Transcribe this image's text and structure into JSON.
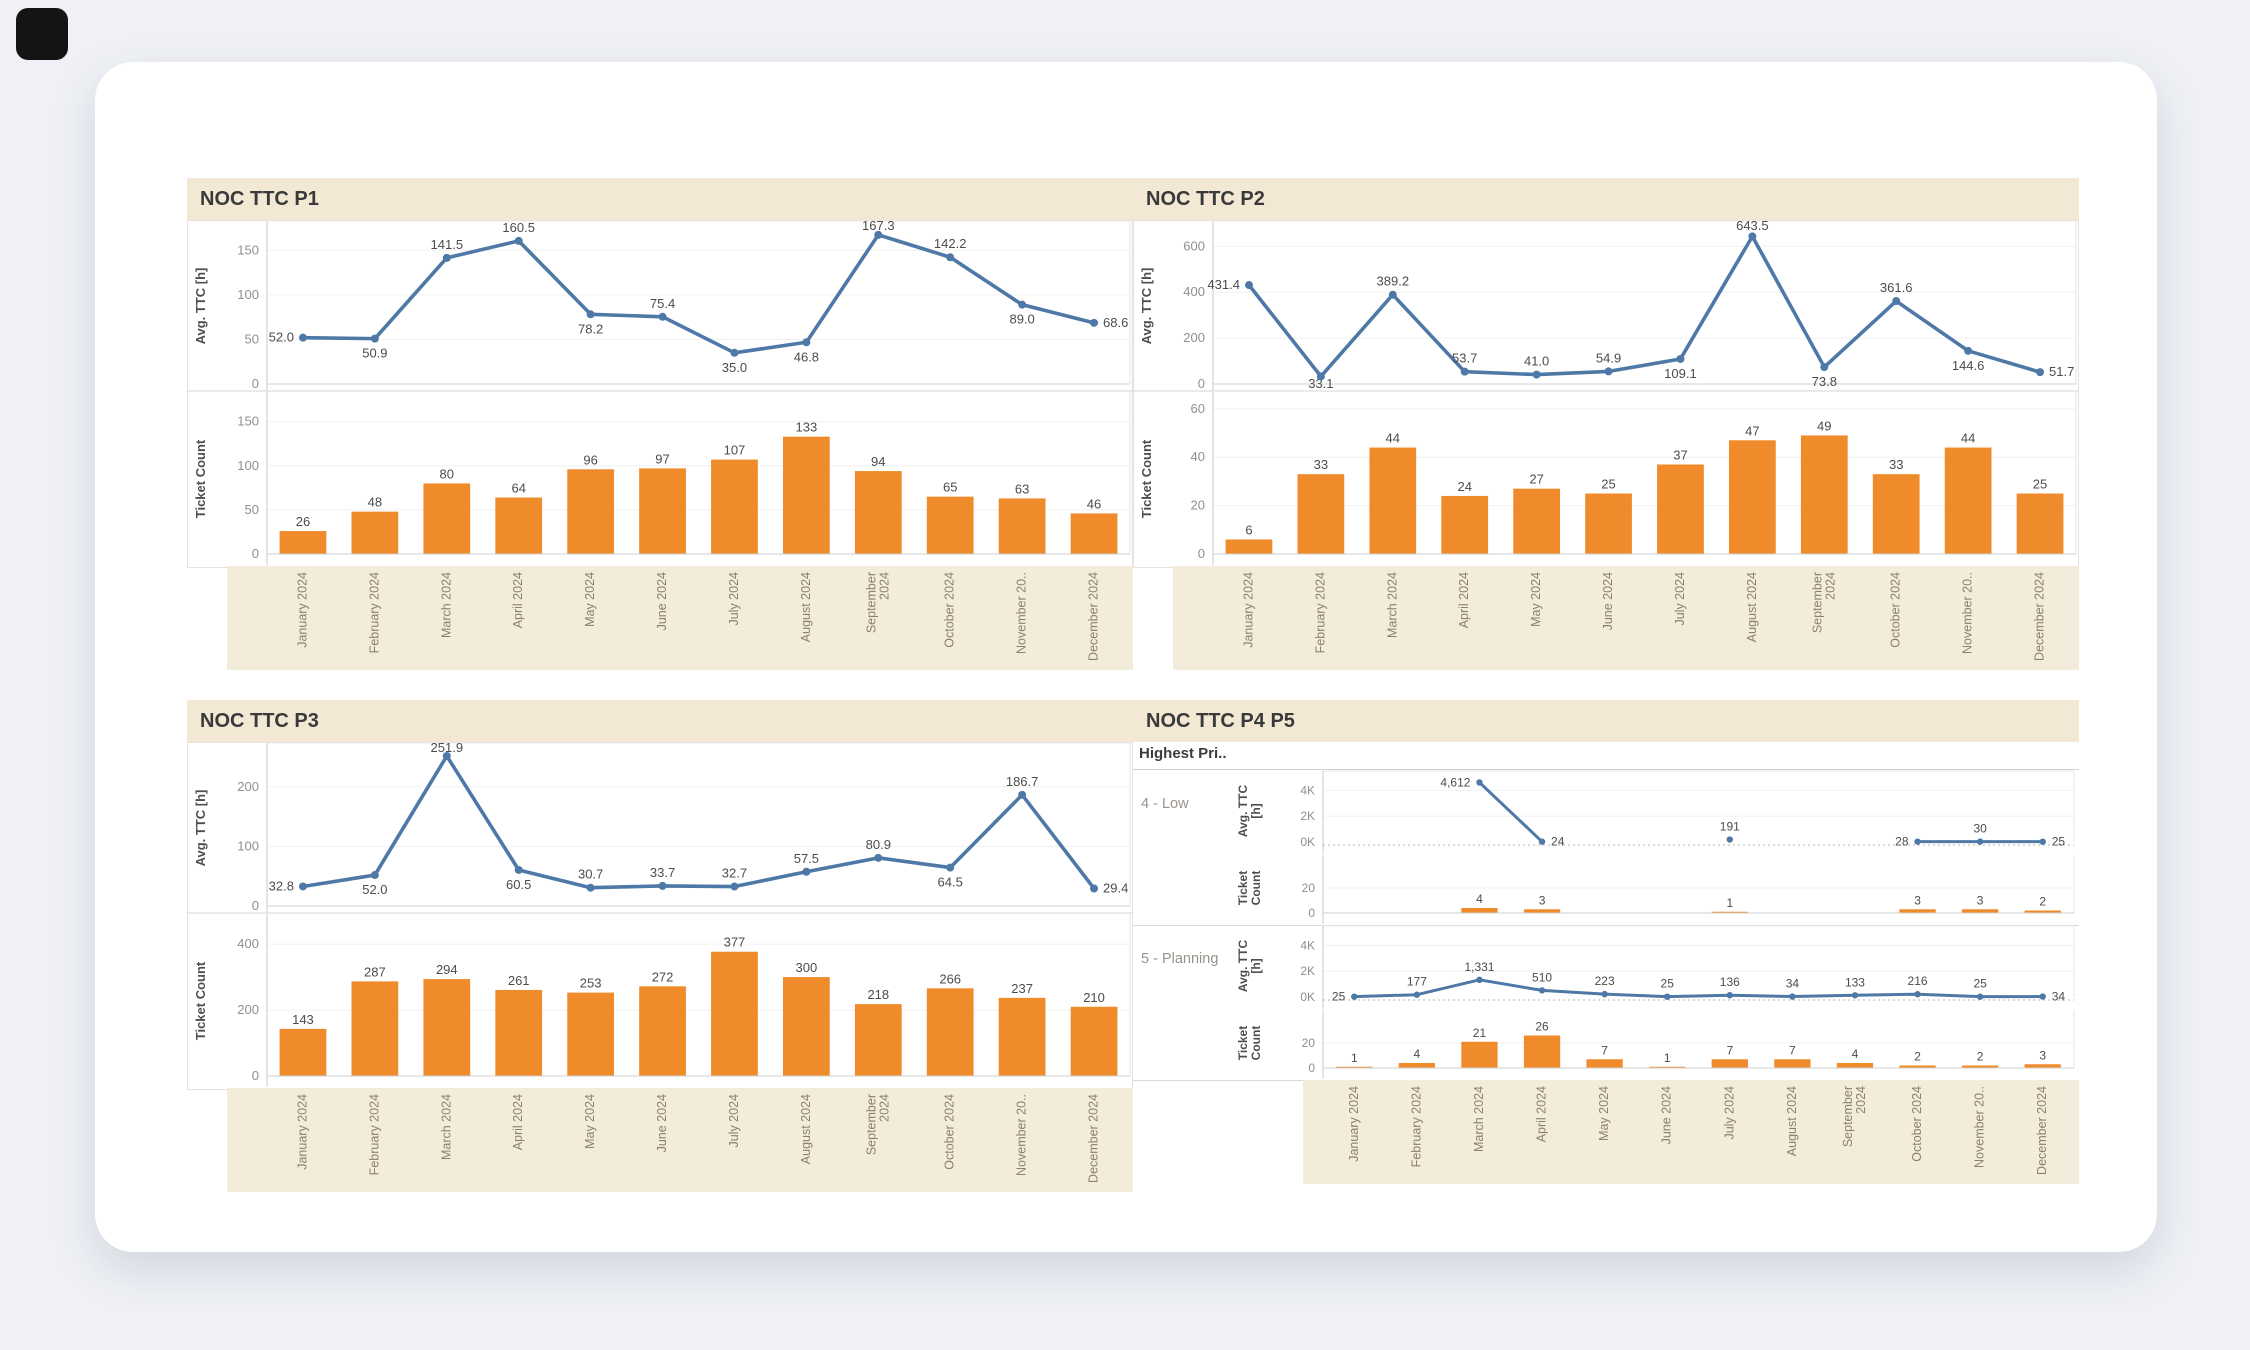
{
  "chart_data": {
    "type": "dashboard",
    "months": [
      "January 2024",
      "February 2024",
      "March 2024",
      "April 2024",
      "May 2024",
      "June 2024",
      "July 2024",
      "August 2024",
      "September\n2024",
      "October 2024",
      "November 20..",
      "December 2024"
    ],
    "colors": {
      "line": "#4e79a7",
      "bar": "#f08b2b",
      "panel_header_bg": "#f2e8d4",
      "month_strip_bg": "#f4ecda"
    },
    "panels": [
      {
        "title": "NOC TTC P1",
        "charts": [
          {
            "type": "line",
            "ylabel": "Avg. TTC [h]",
            "yticks": [
              "0",
              "50",
              "100",
              "150"
            ],
            "ytick_values": [
              0,
              50,
              100,
              150
            ],
            "ylim": [
              0,
              175
            ],
            "values": [
              52.0,
              50.9,
              141.5,
              160.5,
              78.2,
              75.4,
              35.0,
              46.8,
              167.3,
              142.2,
              89.0,
              68.6
            ],
            "labels": [
              "52.0",
              "50.9",
              "141.5",
              "160.5",
              "78.2",
              "75.4",
              "35.0",
              "46.8",
              "167.3",
              "142.2",
              "89.0",
              "68.6"
            ],
            "label_pos": [
              "left",
              "below",
              "above",
              "above",
              "below",
              "above",
              "below",
              "below",
              "above",
              "above",
              "below",
              "right"
            ]
          },
          {
            "type": "bar",
            "ylabel": "Ticket Count",
            "yticks": [
              "0",
              "50",
              "100",
              "150"
            ],
            "ytick_values": [
              0,
              50,
              100,
              150
            ],
            "ylim": [
              0,
              170
            ],
            "values": [
              26,
              48,
              80,
              64,
              96,
              97,
              107,
              133,
              94,
              65,
              63,
              46
            ],
            "labels": [
              "26",
              "48",
              "80",
              "64",
              "96",
              "97",
              "107",
              "133",
              "94",
              "65",
              "63",
              "46"
            ]
          }
        ]
      },
      {
        "title": "NOC TTC P2",
        "charts": [
          {
            "type": "line",
            "ylabel": "Avg. TTC [h]",
            "yticks": [
              "0",
              "200",
              "400",
              "600"
            ],
            "ytick_values": [
              0,
              200,
              400,
              600
            ],
            "ylim": [
              0,
              680
            ],
            "values": [
              431.4,
              33.1,
              389.2,
              53.7,
              41.0,
              54.9,
              109.1,
              643.5,
              73.8,
              361.6,
              144.6,
              51.7
            ],
            "labels": [
              "431.4",
              "33.1",
              "389.2",
              "53.7",
              "41.0",
              "54.9",
              "109.1",
              "643.5",
              "73.8",
              "361.6",
              "144.6",
              "51.7"
            ],
            "label_pos": [
              "left",
              "below",
              "above",
              "above",
              "above",
              "above",
              "below",
              "above",
              "below",
              "above",
              "below",
              "right"
            ]
          },
          {
            "type": "bar",
            "ylabel": "Ticket Count",
            "yticks": [
              "0",
              "20",
              "40",
              "60"
            ],
            "ytick_values": [
              0,
              20,
              40,
              60
            ],
            "ylim": [
              0,
              62
            ],
            "values": [
              6,
              33,
              44,
              24,
              27,
              25,
              37,
              47,
              49,
              33,
              44,
              25
            ],
            "labels": [
              "6",
              "33",
              "44",
              "24",
              "27",
              "25",
              "37",
              "47",
              "49",
              "33",
              "44",
              "25"
            ]
          }
        ]
      },
      {
        "title": "NOC TTC P3",
        "charts": [
          {
            "type": "line",
            "ylabel": "Avg. TTC [h]",
            "yticks": [
              "0",
              "100",
              "200"
            ],
            "ytick_values": [
              0,
              100,
              200
            ],
            "ylim": [
              0,
              262
            ],
            "values": [
              32.8,
              52.0,
              251.9,
              60.5,
              30.7,
              33.7,
              32.7,
              57.5,
              80.9,
              64.5,
              186.7,
              29.4
            ],
            "labels": [
              "32.8",
              "52.0",
              "251.9",
              "60.5",
              "30.7",
              "33.7",
              "32.7",
              "57.5",
              "80.9",
              "64.5",
              "186.7",
              "29.4"
            ],
            "label_pos": [
              "left",
              "below",
              "above",
              "below",
              "above",
              "above",
              "above",
              "above",
              "above",
              "below",
              "above",
              "right"
            ]
          },
          {
            "type": "bar",
            "ylabel": "Ticket Count",
            "yticks": [
              "0",
              "200",
              "400"
            ],
            "ytick_values": [
              0,
              200,
              400
            ],
            "ylim": [
              0,
              455
            ],
            "values": [
              143,
              287,
              294,
              261,
              253,
              272,
              377,
              300,
              218,
              266,
              237,
              210
            ],
            "labels": [
              "143",
              "287",
              "294",
              "261",
              "253",
              "272",
              "377",
              "300",
              "218",
              "266",
              "237",
              "210"
            ]
          }
        ]
      },
      {
        "title": "NOC TTC P4 P5",
        "header": "Highest Pri..",
        "rows": [
          {
            "label": "4 - Low",
            "charts": [
              {
                "type": "line",
                "ylabel": "Avg. TTC\n[h]",
                "yticks": [
                  "0K",
                  "2K",
                  "4K"
                ],
                "ytick_values": [
                  0,
                  2000,
                  4000
                ],
                "ylim": [
                  0,
                  4800
                ],
                "dotted_zero": true,
                "values": [
                  null,
                  null,
                  4612,
                  24,
                  null,
                  null,
                  191,
                  null,
                  null,
                  28,
                  30,
                  25
                ],
                "labels": [
                  null,
                  null,
                  "4,612",
                  "24",
                  null,
                  null,
                  "191",
                  null,
                  null,
                  "28",
                  "30",
                  "25"
                ],
                "label_pos": [
                  null,
                  null,
                  "left",
                  "right",
                  null,
                  null,
                  "above",
                  null,
                  null,
                  "left",
                  "above",
                  "right"
                ]
              },
              {
                "type": "bar",
                "ylabel": "Ticket\nCount",
                "yticks": [
                  "0",
                  "20"
                ],
                "ytick_values": [
                  0,
                  20
                ],
                "ylim": [
                  0,
                  40
                ],
                "values": [
                  null,
                  null,
                  4,
                  3,
                  null,
                  null,
                  1,
                  null,
                  null,
                  3,
                  3,
                  2
                ],
                "labels": [
                  null,
                  null,
                  "4",
                  "3",
                  null,
                  null,
                  "1",
                  null,
                  null,
                  "3",
                  "3",
                  "2"
                ]
              }
            ]
          },
          {
            "label": "5 - Planning",
            "charts": [
              {
                "type": "line",
                "ylabel": "Avg. TTC\n[h]",
                "yticks": [
                  "0K",
                  "2K",
                  "4K"
                ],
                "ytick_values": [
                  0,
                  2000,
                  4000
                ],
                "ylim": [
                  0,
                  4800
                ],
                "dotted_zero": true,
                "values": [
                  25,
                  177,
                  1331,
                  510,
                  223,
                  25,
                  136,
                  34,
                  133,
                  216,
                  25,
                  34
                ],
                "labels": [
                  "25",
                  "177",
                  "1,331",
                  "510",
                  "223",
                  "25",
                  "136",
                  "34",
                  "133",
                  "216",
                  "25",
                  "34"
                ],
                "label_pos": [
                  "left",
                  "above",
                  "above",
                  "above",
                  "above",
                  "above",
                  "above",
                  "above",
                  "above",
                  "above",
                  "above",
                  "right"
                ]
              },
              {
                "type": "bar",
                "ylabel": "Ticket\nCount",
                "yticks": [
                  "0",
                  "20"
                ],
                "ytick_values": [
                  0,
                  20
                ],
                "ylim": [
                  0,
                  40
                ],
                "values": [
                  1,
                  4,
                  21,
                  26,
                  7,
                  1,
                  7,
                  7,
                  4,
                  2,
                  2,
                  3
                ],
                "labels": [
                  "1",
                  "4",
                  "21",
                  "26",
                  "7",
                  "1",
                  "7",
                  "7",
                  "4",
                  "2",
                  "2",
                  "3"
                ]
              }
            ]
          }
        ]
      }
    ]
  }
}
